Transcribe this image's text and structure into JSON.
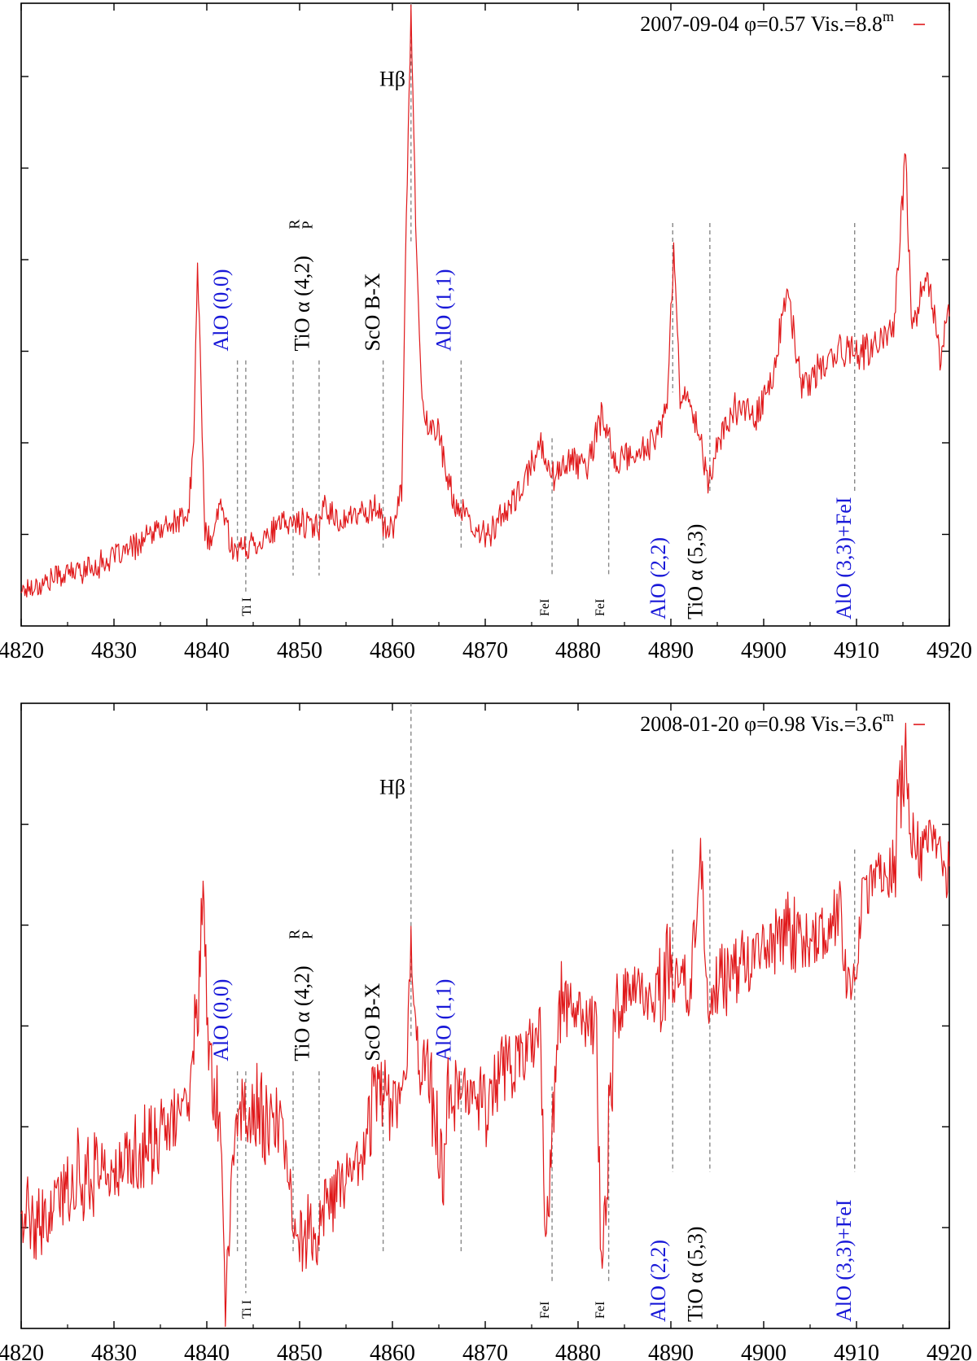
{
  "chart_data": [
    {
      "type": "line",
      "legend": {
        "date": "2007-09-04",
        "phase": "φ=0.57",
        "vis": "Vis.=8.8",
        "vis_sup": "m",
        "placement": "top-right"
      },
      "xlim": [
        4820,
        4920
      ],
      "xticks": [
        "4820",
        "4830",
        "4840",
        "4850",
        "4860",
        "4870",
        "4880",
        "4890",
        "4900",
        "4910",
        "4920"
      ],
      "xlabel": "",
      "ylabel": "",
      "ylim": [
        0,
        6.8
      ],
      "yticks_count": 7,
      "series": [
        {
          "name": "2007-09-04",
          "color": "#e0191b",
          "x": [
            4820,
            4822,
            4824,
            4826,
            4828,
            4830,
            4832,
            4834,
            4836,
            4838,
            4838.6,
            4839,
            4839.4,
            4839.8,
            4840.5,
            4841.5,
            4842.5,
            4843.2,
            4844,
            4846,
            4848,
            4850,
            4852,
            4852.5,
            4854,
            4856,
            4858,
            4860,
            4861,
            4861.5,
            4862,
            4862.5,
            4863.2,
            4864,
            4865,
            4865.8,
            4866.4,
            4867,
            4868,
            4869,
            4870,
            4872,
            4874,
            4876,
            4877.5,
            4879,
            4881,
            4882.5,
            4884,
            4886,
            4888,
            4889.5,
            4890.3,
            4891,
            4892,
            4893,
            4894,
            4895,
            4897,
            4899,
            4901,
            4902.5,
            4904,
            4906,
            4908,
            4910,
            4912,
            4914,
            4915.3,
            4916,
            4917.5,
            4919,
            4920
          ],
          "y": [
            0.4,
            0.45,
            0.55,
            0.6,
            0.65,
            0.75,
            0.85,
            1.0,
            1.1,
            1.2,
            2.0,
            4.05,
            2.5,
            1.0,
            0.9,
            1.35,
            0.95,
            0.8,
            0.85,
            0.95,
            1.1,
            1.15,
            1.05,
            1.35,
            1.15,
            1.2,
            1.3,
            1.0,
            1.5,
            4.5,
            6.75,
            4.5,
            2.4,
            2.1,
            2.2,
            1.6,
            1.45,
            1.3,
            1.15,
            1.0,
            1.0,
            1.2,
            1.5,
            2.0,
            1.6,
            1.85,
            1.7,
            2.3,
            1.8,
            1.85,
            2.0,
            2.3,
            4.1,
            2.5,
            2.45,
            2.2,
            1.5,
            2.0,
            2.4,
            2.3,
            2.7,
            3.7,
            2.6,
            2.8,
            3.0,
            3.0,
            3.0,
            3.3,
            5.1,
            3.2,
            3.9,
            2.9,
            3.5
          ]
        }
      ],
      "annotations": [
        {
          "label": "Hβ",
          "color": "#000000",
          "x": 4862,
          "x_label": 4860,
          "rotated": false,
          "line_y": [
            4.2,
            6.8
          ]
        },
        {
          "label": "AlO (0,0)",
          "color": "#1818d8",
          "x": 4843.3,
          "x_label": 4841.5,
          "rotated": true,
          "line_y": [
            2.9,
            0.75
          ]
        },
        {
          "label": "TiO α (4,2)",
          "sup": "R",
          "sub": "P",
          "color": "#000000",
          "x": 4849.3,
          "x_label": 4850.2,
          "rotated": true,
          "line_y": [
            2.9,
            0.55
          ]
        },
        {
          "label": "ScO B-X",
          "color": "#000000",
          "x": 4859,
          "x_label": 4857.8,
          "rotated": true,
          "line_y": [
            2.9,
            0.85
          ]
        },
        {
          "label": "AlO (1,1)",
          "color": "#1818d8",
          "x": 4867.4,
          "x_label": 4865.5,
          "rotated": true,
          "line_y": [
            2.9,
            0.85
          ]
        },
        {
          "label": "AlO (2,2)",
          "color": "#1818d8",
          "x": 4890.2,
          "x_label": 4888.6,
          "rotated": true,
          "line_y": [
            4.4,
            2.55
          ]
        },
        {
          "label": "TiO α (5,3)",
          "color": "#000000",
          "x": 4894.2,
          "x_label": 4892.6,
          "rotated": true,
          "line_y": [
            4.4,
            1.45
          ]
        },
        {
          "label": "AlO (3,3)+FeI",
          "color": "#1818d8",
          "x": 4909.8,
          "x_label": 4908.6,
          "rotated": true,
          "line_y": [
            4.4,
            1.45
          ]
        },
        {
          "label": "Ti I",
          "color": "#000000",
          "x": 4844.2,
          "x_label": 4844.2,
          "rotated": true,
          "line_y": [
            2.9,
            0.35
          ]
        },
        {
          "label": "FeI",
          "color": "#000000",
          "x": 4877.2,
          "x_label": 4876.3,
          "rotated": true,
          "line_y": [
            2.05,
            0.55
          ]
        },
        {
          "label": "FeI",
          "color": "#000000",
          "x": 4883.3,
          "x_label": 4882.3,
          "rotated": true,
          "line_y": [
            2.05,
            0.55
          ]
        },
        {
          "label": "",
          "color": "#000000",
          "x": 4852.1,
          "x_label": 4852.1,
          "rotated": true,
          "line_y": [
            2.9,
            0.55
          ]
        }
      ]
    },
    {
      "type": "line",
      "legend": {
        "date": "2008-01-20",
        "phase": "φ=0.98",
        "vis": "Vis.=3.6",
        "vis_sup": "m",
        "placement": "top-right"
      },
      "xlim": [
        4820,
        4920
      ],
      "xticks": [
        "4820",
        "4830",
        "4840",
        "4850",
        "4860",
        "4870",
        "4880",
        "4890",
        "4900",
        "4910",
        "4920"
      ],
      "xlabel": "",
      "ylabel": "",
      "ylim": [
        0,
        6.2
      ],
      "yticks_count": 6,
      "series": [
        {
          "name": "2008-01-20",
          "color": "#e0191b",
          "x": [
            4820,
            4822,
            4824,
            4826,
            4828,
            4830,
            4832,
            4834,
            4836,
            4838,
            4839,
            4839.5,
            4840.5,
            4841.5,
            4842,
            4843,
            4844,
            4846,
            4848,
            4849.5,
            4851,
            4852,
            4853,
            4855,
            4857,
            4858.6,
            4860,
            4861.5,
            4862,
            4863,
            4864,
            4865.5,
            4866,
            4868,
            4870,
            4872,
            4874,
            4876,
            4876.5,
            4878,
            4880,
            4882,
            4882.5,
            4884,
            4886,
            4888,
            4890,
            4892,
            4893.2,
            4894.2,
            4895,
            4897,
            4899,
            4901,
            4903,
            4905,
            4907,
            4908,
            4909.8,
            4910.5,
            4912,
            4914,
            4915.3,
            4916,
            4918,
            4920
          ],
          "y": [
            1.2,
            0.9,
            1.3,
            1.5,
            1.6,
            1.5,
            1.7,
            1.8,
            2.0,
            2.3,
            3.1,
            4.5,
            2.5,
            2.2,
            0.2,
            2.0,
            2.2,
            2.1,
            2.0,
            1.0,
            0.95,
            0.85,
            1.2,
            1.5,
            1.8,
            2.6,
            2.2,
            2.5,
            3.8,
            2.5,
            2.6,
            1.4,
            2.3,
            2.4,
            2.3,
            2.6,
            2.7,
            2.9,
            0.6,
            3.3,
            3.1,
            3.0,
            0.6,
            3.2,
            3.4,
            3.2,
            3.6,
            3.3,
            4.7,
            2.9,
            3.5,
            3.5,
            3.7,
            3.8,
            4.0,
            3.8,
            4.0,
            4.1,
            3.2,
            4.3,
            4.5,
            4.6,
            5.75,
            4.6,
            4.9,
            4.5
          ]
        }
      ],
      "annotations": [
        {
          "label": "Hβ",
          "color": "#000000",
          "x": 4862,
          "x_label": 4860,
          "rotated": false,
          "line_y": [
            2.9,
            6.2
          ]
        },
        {
          "label": "AlO (0,0)",
          "color": "#1818d8",
          "x": 4843.3,
          "x_label": 4841.5,
          "rotated": true,
          "line_y": [
            2.55,
            0.75
          ]
        },
        {
          "label": "TiO α (4,2)",
          "sup": "R",
          "sub": "P",
          "color": "#000000",
          "x": 4849.3,
          "x_label": 4850.2,
          "rotated": true,
          "line_y": [
            2.55,
            0.75
          ]
        },
        {
          "label": "ScO B-X",
          "color": "#000000",
          "x": 4859,
          "x_label": 4857.8,
          "rotated": true,
          "line_y": [
            2.55,
            0.75
          ]
        },
        {
          "label": "AlO (1,1)",
          "color": "#1818d8",
          "x": 4867.4,
          "x_label": 4865.5,
          "rotated": true,
          "line_y": [
            2.55,
            0.75
          ]
        },
        {
          "label": "AlO (2,2)",
          "color": "#1818d8",
          "x": 4890.2,
          "x_label": 4888.6,
          "rotated": true,
          "line_y": [
            4.75,
            1.55
          ]
        },
        {
          "label": "TiO α (5,3)",
          "color": "#000000",
          "x": 4894.2,
          "x_label": 4892.6,
          "rotated": true,
          "line_y": [
            4.75,
            1.55
          ]
        },
        {
          "label": "AlO (3,3)+FeI",
          "color": "#1818d8",
          "x": 4909.8,
          "x_label": 4908.6,
          "rotated": true,
          "line_y": [
            4.75,
            1.55
          ]
        },
        {
          "label": "Ti I",
          "color": "#000000",
          "x": 4844.2,
          "x_label": 4844.2,
          "rotated": true,
          "line_y": [
            2.55,
            0.35
          ]
        },
        {
          "label": "FeI",
          "color": "#000000",
          "x": 4877.2,
          "x_label": 4876.3,
          "rotated": true,
          "line_y": [
            2.4,
            0.45
          ]
        },
        {
          "label": "FeI",
          "color": "#000000",
          "x": 4883.3,
          "x_label": 4882.3,
          "rotated": true,
          "line_y": [
            2.4,
            0.45
          ]
        },
        {
          "label": "",
          "color": "#000000",
          "x": 4852.1,
          "x_label": 4852.1,
          "rotated": true,
          "line_y": [
            2.55,
            0.75
          ]
        }
      ]
    }
  ]
}
